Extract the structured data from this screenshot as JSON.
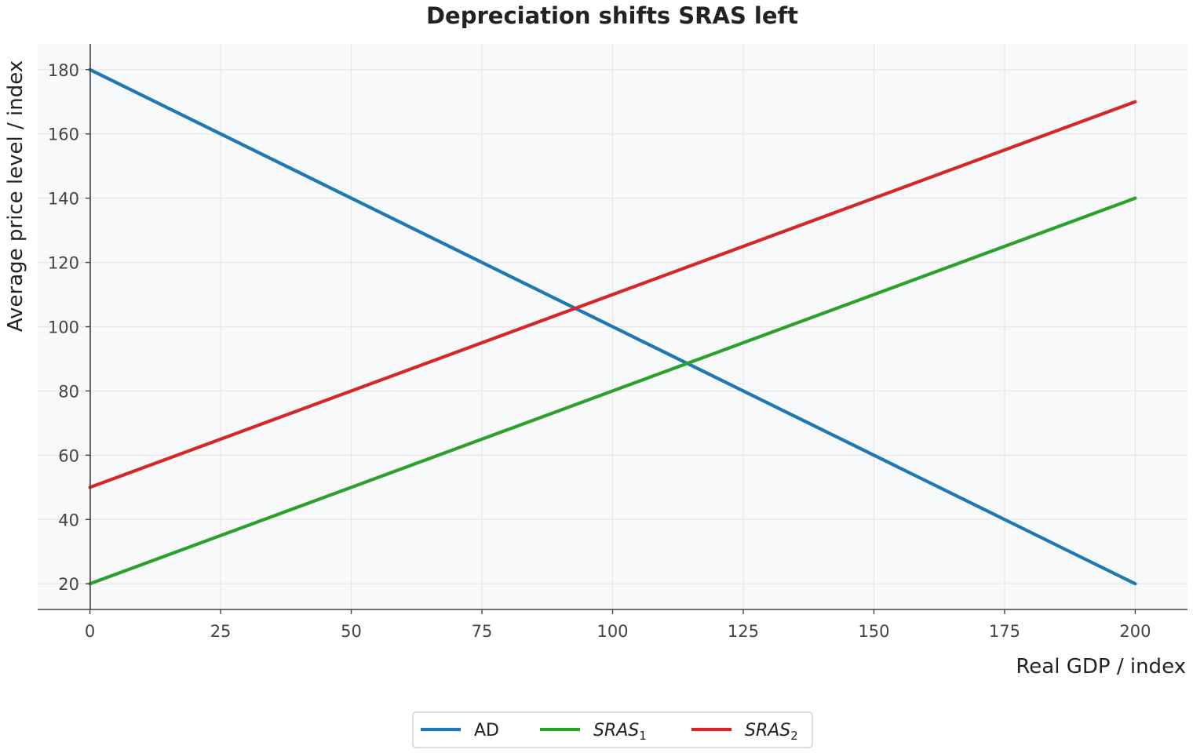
{
  "chart_data": {
    "type": "line",
    "title": "Depreciation shifts SRAS left",
    "xlabel": "Real GDP / index",
    "ylabel": "Average price level / index",
    "xlim": [
      -10,
      210
    ],
    "ylim": [
      12,
      188
    ],
    "xticks": [
      0,
      25,
      50,
      75,
      100,
      125,
      150,
      175,
      200
    ],
    "yticks": [
      20,
      40,
      60,
      80,
      100,
      120,
      140,
      160,
      180
    ],
    "grid": true,
    "legend_position": "bottom-center",
    "series": [
      {
        "name": "AD",
        "name_base": "AD",
        "name_sub": "",
        "color": "#1f77b4",
        "x": [
          0,
          200
        ],
        "y": [
          180,
          20
        ]
      },
      {
        "name": "SRAS_1",
        "name_base": "SRAS",
        "name_sub": "1",
        "color": "#2ca02c",
        "x": [
          0,
          200
        ],
        "y": [
          20,
          140
        ]
      },
      {
        "name": "SRAS_2",
        "name_base": "SRAS",
        "name_sub": "2",
        "color": "#d62728",
        "x": [
          0,
          200
        ],
        "y": [
          50,
          170
        ]
      }
    ]
  }
}
